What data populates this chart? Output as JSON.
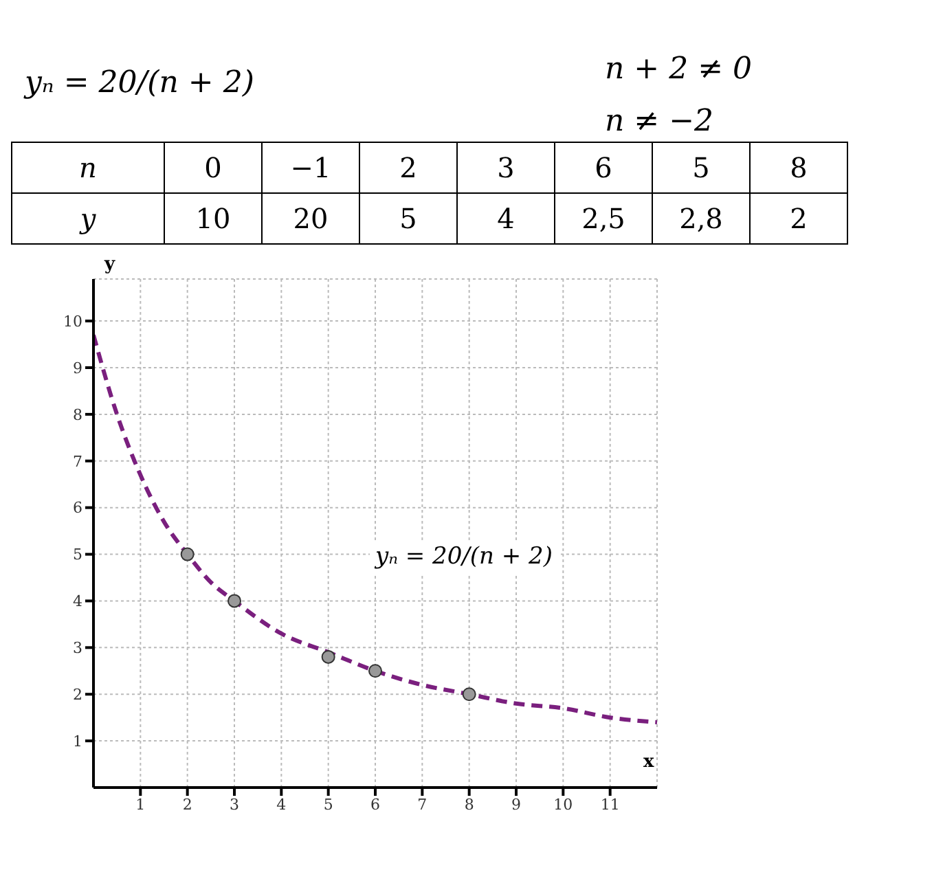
{
  "chart_data": [
    {
      "type": "other",
      "title": "yₙ = 20/(n + 2)",
      "annotations": [
        "n + 2 ≠ 0",
        "n ≠ −2"
      ],
      "xlabel": "n",
      "ylabel": "y",
      "categories": [
        "0",
        "−1",
        "2",
        "3",
        "6",
        "5",
        "8"
      ],
      "value_labels": [
        "10",
        "20",
        "5",
        "4",
        "2,5",
        "2,8",
        "2"
      ]
    },
    {
      "type": "line",
      "xlabel": "x",
      "ylabel": "y",
      "xlim": [
        0,
        12
      ],
      "ylim": [
        0,
        10.9
      ],
      "xticks": [
        1,
        2,
        3,
        4,
        5,
        6,
        7,
        8,
        9,
        10,
        11
      ],
      "yticks": [
        1,
        2,
        3,
        4,
        5,
        6,
        7,
        8,
        9,
        10
      ],
      "grid": true,
      "annotations": [
        "yₙ = 20/(n + 2)"
      ],
      "series": [
        {
          "type": "line",
          "color": "#7a1f7e",
          "line_style": "dashed",
          "marker": "none",
          "x": [
            0,
            0.5,
            1,
            1.5,
            2,
            2.5,
            3,
            4,
            5,
            6,
            7,
            8,
            9,
            10,
            11,
            12
          ],
          "values": [
            9.7,
            8.0,
            6.7,
            5.7,
            5.0,
            4.4,
            4.0,
            3.3,
            2.9,
            2.5,
            2.2,
            2.0,
            1.8,
            1.7,
            1.5,
            1.4
          ]
        },
        {
          "type": "scatter",
          "color": "#999999",
          "marker": "circle",
          "x": [
            2,
            3,
            5,
            6,
            8
          ],
          "values": [
            5,
            4,
            2.8,
            2.5,
            2
          ]
        }
      ]
    }
  ]
}
